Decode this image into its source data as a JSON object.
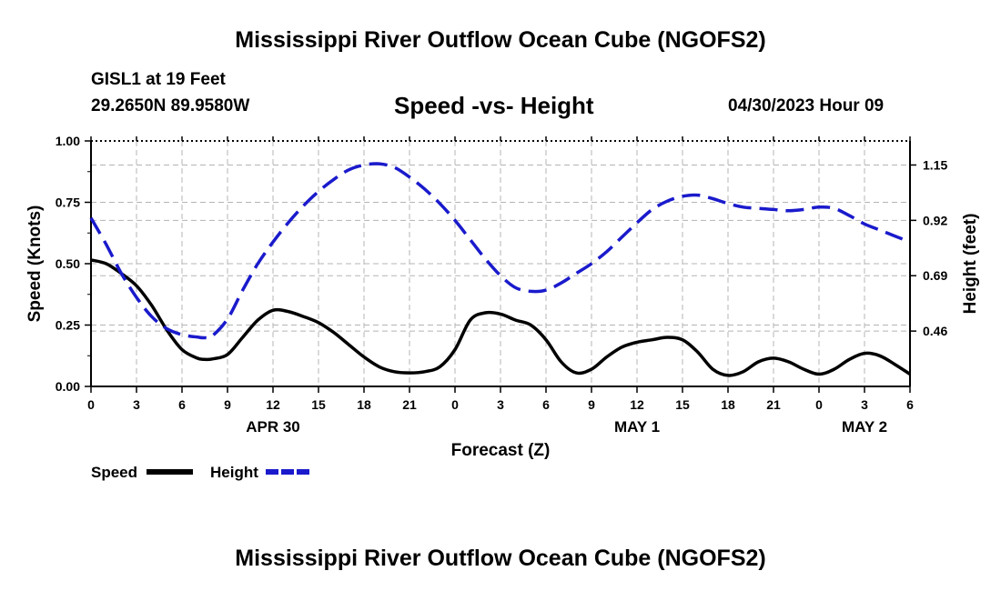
{
  "header": {
    "title": "Mississippi River Outflow Ocean Cube (NGOFS2)",
    "station": "GISL1 at 19 Feet",
    "coordinates": "29.2650N  89.9580W",
    "subtitle": "Speed -vs- Height",
    "timestamp": "04/30/2023 Hour 09"
  },
  "footer": {
    "title": "Mississippi River Outflow Ocean Cube (NGOFS2)"
  },
  "chart_data": {
    "type": "line",
    "title": "Speed -vs- Height",
    "xlabel": "Forecast (Z)",
    "ylabel": "Speed (Knots)",
    "y2label": "Height (feet)",
    "x_unit": "hours since 04/30 00Z",
    "xlim": [
      0,
      54
    ],
    "ylim": [
      0.0,
      1.0
    ],
    "y2lim": [
      0.23,
      1.25
    ],
    "grid": true,
    "x_tick_values": [
      0,
      3,
      6,
      9,
      12,
      15,
      18,
      21,
      24,
      27,
      30,
      33,
      36,
      39,
      42,
      45,
      48,
      51,
      54
    ],
    "x_tick_labels": [
      "0",
      "3",
      "6",
      "9",
      "12",
      "15",
      "18",
      "21",
      "0",
      "3",
      "6",
      "9",
      "12",
      "15",
      "18",
      "21",
      "0",
      "3",
      "6"
    ],
    "y_ticks": [
      0.0,
      0.25,
      0.5,
      0.75,
      1.0
    ],
    "y_tick_labels": [
      "0.00",
      "0.25",
      "0.50",
      "0.75",
      "1.00"
    ],
    "y2_ticks": [
      0.46,
      0.69,
      0.92,
      1.15
    ],
    "y2_tick_labels": [
      "0.46",
      "0.69",
      "0.92",
      "1.15"
    ],
    "date_labels": [
      {
        "x": 12,
        "label": "APR 30"
      },
      {
        "x": 36,
        "label": "MAY 1"
      },
      {
        "x": 51,
        "label": "MAY 2"
      }
    ],
    "legend": {
      "position": "bottom-left",
      "items": [
        {
          "label": "Speed",
          "color": "#000000",
          "style": "solid"
        },
        {
          "label": "Height",
          "color": "#1a1acc",
          "style": "dashed"
        }
      ]
    },
    "series": [
      {
        "name": "Speed",
        "axis": "left",
        "color": "#000000",
        "style": "solid",
        "x": [
          0,
          1,
          2,
          3,
          4,
          5,
          6,
          7,
          7.5,
          8,
          9,
          10,
          11,
          12,
          13,
          14,
          15,
          16,
          17,
          18,
          19,
          20,
          21,
          22,
          23,
          24,
          25,
          26,
          27,
          28,
          29,
          30,
          31,
          32,
          33,
          34,
          35,
          36,
          37,
          38,
          39,
          40,
          41,
          42,
          43,
          44,
          45,
          46,
          47,
          48,
          49,
          50,
          51,
          52,
          53,
          54
        ],
        "values": [
          0.515,
          0.5,
          0.46,
          0.41,
          0.33,
          0.23,
          0.15,
          0.115,
          0.11,
          0.112,
          0.13,
          0.2,
          0.27,
          0.31,
          0.305,
          0.285,
          0.26,
          0.22,
          0.17,
          0.12,
          0.08,
          0.06,
          0.055,
          0.06,
          0.08,
          0.15,
          0.27,
          0.3,
          0.295,
          0.27,
          0.25,
          0.19,
          0.1,
          0.055,
          0.07,
          0.12,
          0.16,
          0.18,
          0.19,
          0.2,
          0.19,
          0.14,
          0.07,
          0.045,
          0.06,
          0.1,
          0.115,
          0.1,
          0.07,
          0.05,
          0.07,
          0.11,
          0.135,
          0.125,
          0.09,
          0.05
        ]
      },
      {
        "name": "Height",
        "axis": "right",
        "color": "#1a1acc",
        "style": "dashed",
        "x": [
          0,
          1,
          2,
          3,
          4,
          5,
          6,
          7,
          7.5,
          8,
          9,
          10,
          11,
          12,
          13,
          14,
          15,
          16,
          17,
          18,
          19,
          20,
          21,
          22,
          23,
          24,
          25,
          26,
          27,
          28,
          29,
          30,
          31,
          32,
          33,
          34,
          35,
          36,
          37,
          38,
          39,
          40,
          41,
          42,
          43,
          44,
          45,
          46,
          47,
          48,
          49,
          50,
          51,
          52,
          53,
          54
        ],
        "values": [
          0.93,
          0.82,
          0.7,
          0.6,
          0.52,
          0.47,
          0.445,
          0.435,
          0.432,
          0.44,
          0.51,
          0.63,
          0.74,
          0.83,
          0.91,
          0.98,
          1.04,
          1.09,
          1.13,
          1.15,
          1.155,
          1.14,
          1.1,
          1.05,
          0.99,
          0.92,
          0.84,
          0.76,
          0.69,
          0.64,
          0.625,
          0.63,
          0.66,
          0.7,
          0.74,
          0.79,
          0.85,
          0.91,
          0.965,
          1.0,
          1.02,
          1.025,
          1.01,
          0.99,
          0.975,
          0.97,
          0.965,
          0.96,
          0.965,
          0.975,
          0.97,
          0.94,
          0.905,
          0.88,
          0.855,
          0.83
        ]
      }
    ]
  }
}
